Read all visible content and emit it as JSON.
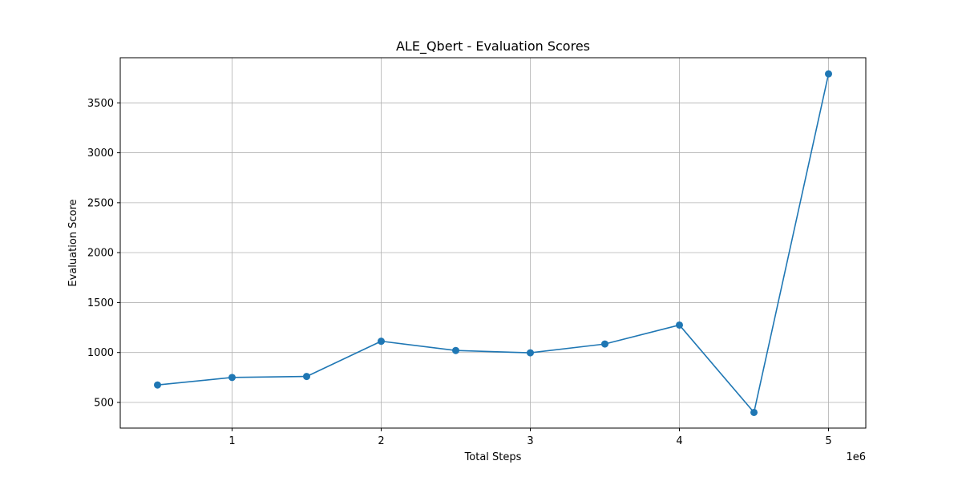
{
  "chart_data": {
    "type": "line",
    "title": "ALE_Qbert - Evaluation Scores",
    "xlabel": "Total Steps",
    "ylabel": "Evaluation Score",
    "x_offset_label": "1e6",
    "x_scale": 1000000,
    "xlim": [
      250000,
      5250000
    ],
    "ylim": [
      243,
      3952
    ],
    "x_ticks": [
      1000000,
      2000000,
      3000000,
      4000000,
      5000000
    ],
    "x_tick_labels": [
      "1",
      "2",
      "3",
      "4",
      "5"
    ],
    "y_ticks": [
      500,
      1000,
      1500,
      2000,
      2500,
      3000,
      3500
    ],
    "y_tick_labels": [
      "500",
      "1000",
      "1500",
      "2000",
      "2500",
      "3000",
      "3500"
    ],
    "grid": true,
    "color": "#1f77b4",
    "marker": "circle",
    "series": [
      {
        "x": [
          500000,
          1000000,
          1500000,
          2000000,
          2500000,
          3000000,
          3500000,
          4000000,
          4500000,
          5000000
        ],
        "values": [
          675,
          750,
          760,
          1113,
          1020,
          997,
          1085,
          1275,
          400,
          3790
        ]
      }
    ]
  }
}
